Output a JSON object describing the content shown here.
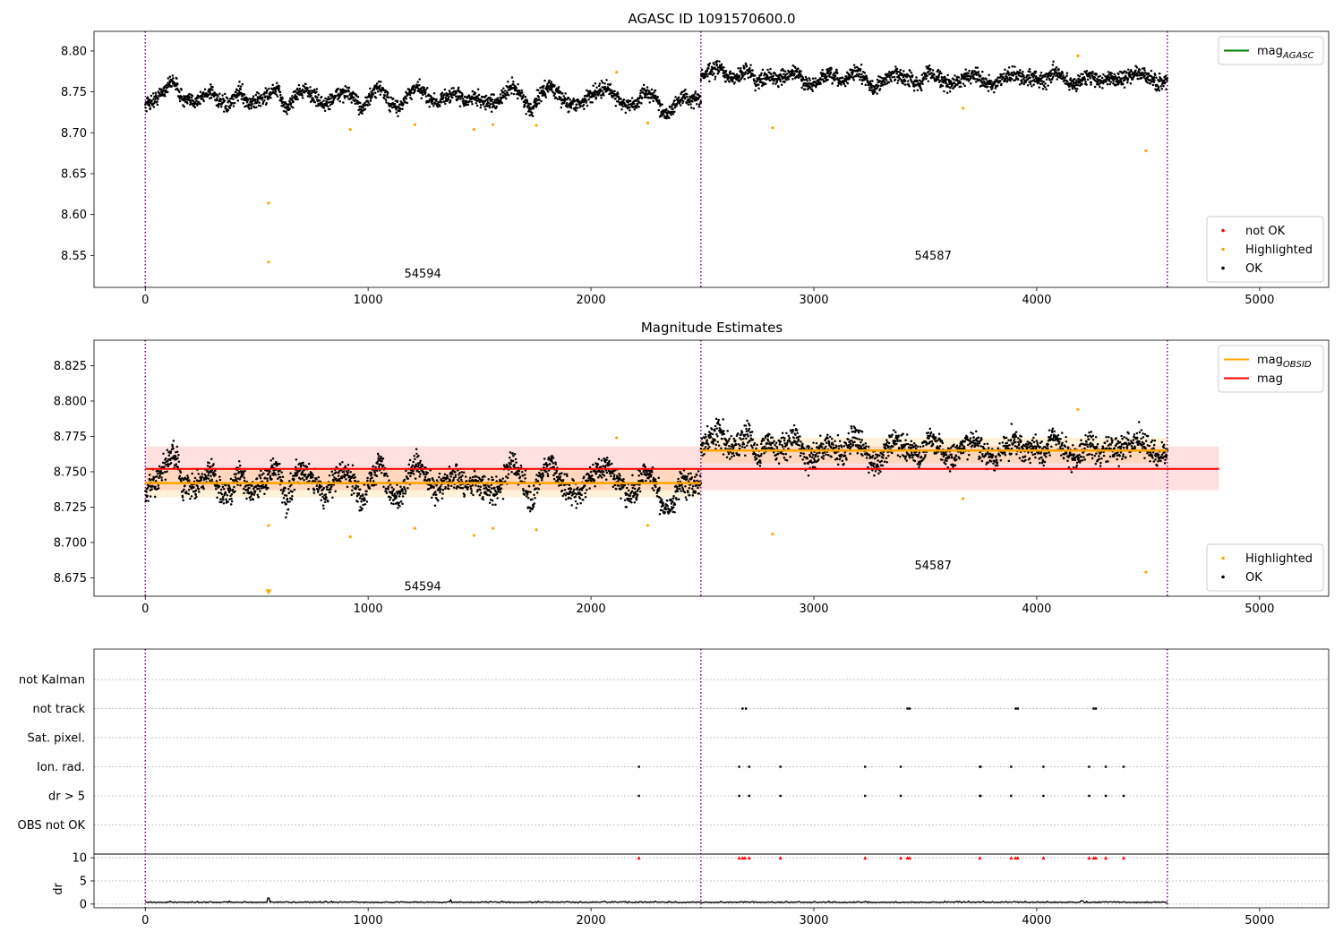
{
  "figure": {
    "title": "AGASC ID 1091570600.0"
  },
  "chart_data": [
    {
      "type": "scatter",
      "title": "AGASC ID 1091570600.0",
      "xlim": [
        -230,
        5310
      ],
      "ylim": [
        8.511,
        8.824
      ],
      "xticks": [
        0,
        1000,
        2000,
        3000,
        4000,
        5000
      ],
      "yticks": [
        8.55,
        8.6,
        8.65,
        8.7,
        8.75,
        8.8
      ],
      "grid": false,
      "legend": [
        {
          "position": "top-right",
          "entries": [
            {
              "label": "mag",
              "sub": "AGASC",
              "color": "#008000",
              "kind": "line"
            }
          ]
        },
        {
          "position": "bottom-right",
          "entries": [
            {
              "label": "not OK",
              "color": "#ff0000",
              "kind": "dot"
            },
            {
              "label": "Highlighted",
              "color": "#ffa500",
              "kind": "dot"
            },
            {
              "label": "OK",
              "color": "#000000",
              "kind": "dot"
            }
          ]
        }
      ],
      "vlines": [
        0,
        2493,
        4586
      ],
      "obsid_labels": [
        {
          "text": "54594",
          "x": 1245,
          "y": 8.523
        },
        {
          "text": "54587",
          "x": 3535,
          "y": 8.545
        }
      ],
      "ok_segments": [
        {
          "x0": 0,
          "x1": 2493,
          "levels": [
            8.735,
            8.74,
            8.752,
            8.765,
            8.74,
            8.738,
            8.743,
            8.752,
            8.736,
            8.733,
            8.753,
            8.735,
            8.74,
            8.746,
            8.753,
            8.728,
            8.748,
            8.752,
            8.744,
            8.733,
            8.743,
            8.75,
            8.744,
            8.73,
            8.745,
            8.757,
            8.735,
            8.73,
            8.748,
            8.755,
            8.744,
            8.737,
            8.745,
            8.748,
            8.738,
            8.744,
            8.738,
            8.736,
            8.744,
            8.758,
            8.745,
            8.726,
            8.748,
            8.758,
            8.744,
            8.736,
            8.735,
            8.743,
            8.752,
            8.754,
            8.745,
            8.733,
            8.734,
            8.75,
            8.746,
            8.725,
            8.728,
            8.745,
            8.74,
            8.742
          ]
        },
        {
          "x0": 2493,
          "x1": 4586,
          "levels": [
            8.768,
            8.775,
            8.78,
            8.765,
            8.77,
            8.778,
            8.76,
            8.772,
            8.765,
            8.768,
            8.775,
            8.76,
            8.758,
            8.77,
            8.768,
            8.762,
            8.775,
            8.77,
            8.755,
            8.76,
            8.772,
            8.77,
            8.765,
            8.76,
            8.775,
            8.768,
            8.758,
            8.762,
            8.77,
            8.772,
            8.76,
            8.758,
            8.768,
            8.772,
            8.765,
            8.77,
            8.76,
            8.775,
            8.768,
            8.758,
            8.765,
            8.77,
            8.762,
            8.768,
            8.765,
            8.77,
            8.772,
            8.768,
            8.76,
            8.765
          ]
        }
      ],
      "highlighted": {
        "x": [
          553,
          553,
          920,
          1210,
          1475,
          1560,
          1755,
          2115,
          2255,
          2815,
          3670,
          4185,
          4490
        ],
        "y": [
          8.614,
          8.542,
          8.704,
          8.71,
          8.704,
          8.71,
          8.709,
          8.774,
          8.712,
          8.706,
          8.73,
          8.794,
          8.678
        ]
      }
    },
    {
      "type": "scatter",
      "title": "Magnitude Estimates",
      "xlim": [
        -230,
        5310
      ],
      "ylim": [
        8.662,
        8.843
      ],
      "xticks": [
        0,
        1000,
        2000,
        3000,
        4000,
        5000
      ],
      "yticks": [
        8.675,
        8.7,
        8.725,
        8.75,
        8.775,
        8.8,
        8.825
      ],
      "grid": false,
      "legend": [
        {
          "position": "top-right",
          "entries": [
            {
              "label": "mag",
              "sub": "OBSID",
              "color": "#ffa500",
              "kind": "line"
            },
            {
              "label": "mag",
              "sub": "",
              "color": "#ff0000",
              "kind": "line"
            }
          ]
        },
        {
          "position": "bottom-right",
          "entries": [
            {
              "label": "Highlighted",
              "color": "#ffa500",
              "kind": "dot"
            },
            {
              "label": "OK",
              "color": "#000000",
              "kind": "dot"
            }
          ]
        }
      ],
      "vlines": [
        0,
        2493,
        4586
      ],
      "mag": {
        "value": 8.752,
        "band": [
          8.737,
          8.768
        ],
        "x0": 0,
        "x1": 4818
      },
      "obsid_mag": [
        {
          "x0": 0,
          "x1": 2493,
          "value": 8.742,
          "band": [
            8.732,
            8.752
          ]
        },
        {
          "x0": 2493,
          "x1": 4586,
          "value": 8.765,
          "band": [
            8.756,
            8.774
          ]
        }
      ],
      "obsid_labels": [
        {
          "text": "54594",
          "x": 1245,
          "y": 8.666
        },
        {
          "text": "54587",
          "x": 3535,
          "y": 8.681
        }
      ],
      "ok_segments": [
        {
          "x0": 0,
          "x1": 2493,
          "levels": [
            8.735,
            8.74,
            8.752,
            8.765,
            8.74,
            8.738,
            8.743,
            8.752,
            8.736,
            8.733,
            8.753,
            8.735,
            8.74,
            8.746,
            8.753,
            8.728,
            8.748,
            8.752,
            8.744,
            8.733,
            8.743,
            8.75,
            8.744,
            8.73,
            8.745,
            8.757,
            8.735,
            8.73,
            8.748,
            8.755,
            8.744,
            8.737,
            8.745,
            8.748,
            8.738,
            8.744,
            8.738,
            8.736,
            8.744,
            8.758,
            8.745,
            8.726,
            8.748,
            8.758,
            8.744,
            8.736,
            8.735,
            8.743,
            8.752,
            8.754,
            8.745,
            8.733,
            8.734,
            8.75,
            8.746,
            8.725,
            8.728,
            8.745,
            8.74,
            8.742
          ]
        },
        {
          "x0": 2493,
          "x1": 4586,
          "levels": [
            8.768,
            8.775,
            8.78,
            8.765,
            8.77,
            8.778,
            8.76,
            8.772,
            8.765,
            8.768,
            8.775,
            8.76,
            8.758,
            8.77,
            8.768,
            8.762,
            8.775,
            8.77,
            8.755,
            8.76,
            8.772,
            8.77,
            8.765,
            8.76,
            8.775,
            8.768,
            8.758,
            8.762,
            8.77,
            8.772,
            8.76,
            8.758,
            8.768,
            8.772,
            8.765,
            8.77,
            8.76,
            8.775,
            8.768,
            8.758,
            8.765,
            8.77,
            8.762,
            8.768,
            8.765,
            8.77,
            8.772,
            8.768,
            8.76,
            8.765
          ]
        }
      ],
      "highlighted": {
        "x": [
          553,
          920,
          1210,
          1475,
          1560,
          1755,
          2115,
          2255,
          2815,
          3670,
          4185,
          4490
        ],
        "y": [
          8.712,
          8.704,
          8.71,
          8.705,
          8.71,
          8.709,
          8.774,
          8.712,
          8.706,
          8.731,
          8.794,
          8.679
        ]
      },
      "off_scale_marker": {
        "x": 553,
        "y": 8.665
      }
    },
    {
      "type": "scatter",
      "title": "",
      "xlim": [
        -230,
        5310
      ],
      "xticks": [
        0,
        1000,
        2000,
        3000,
        4000,
        5000
      ],
      "vlines": [
        0,
        2493,
        4586
      ],
      "flags": {
        "categories": [
          "not Kalman",
          "not track",
          "Sat. pixel.",
          "Ion. rad.",
          "dr > 5",
          "OBS not OK"
        ],
        "points": {
          "not track": [
            2680,
            2695,
            3420,
            3430,
            3905,
            3915,
            4255,
            4265
          ],
          "Ion. rad.": [
            2215,
            2665,
            2710,
            2850,
            3230,
            3390,
            3745,
            3748,
            3885,
            4030,
            4235,
            4310,
            4390
          ],
          "dr > 5": [
            2215,
            2665,
            2710,
            2850,
            3230,
            3390,
            3745,
            3748,
            3885,
            4030,
            4235,
            4310,
            4390
          ]
        }
      },
      "dr": {
        "ylabel": "dr",
        "ylim": [
          -0.8,
          10.8
        ],
        "yticks": [
          0,
          5,
          10
        ],
        "baseline": 0.3,
        "spikes": [
          {
            "x": 553,
            "y": 1.3
          },
          {
            "x": 1370,
            "y": 0.9
          },
          {
            "x": 2060,
            "y": 0.6
          },
          {
            "x": 4200,
            "y": 0.7
          }
        ],
        "capped_x": [
          2215,
          2665,
          2680,
          2690,
          2710,
          2850,
          3230,
          3390,
          3420,
          3430,
          3745,
          3885,
          3905,
          3915,
          4030,
          4235,
          4255,
          4265,
          4310,
          4390
        ]
      }
    }
  ]
}
